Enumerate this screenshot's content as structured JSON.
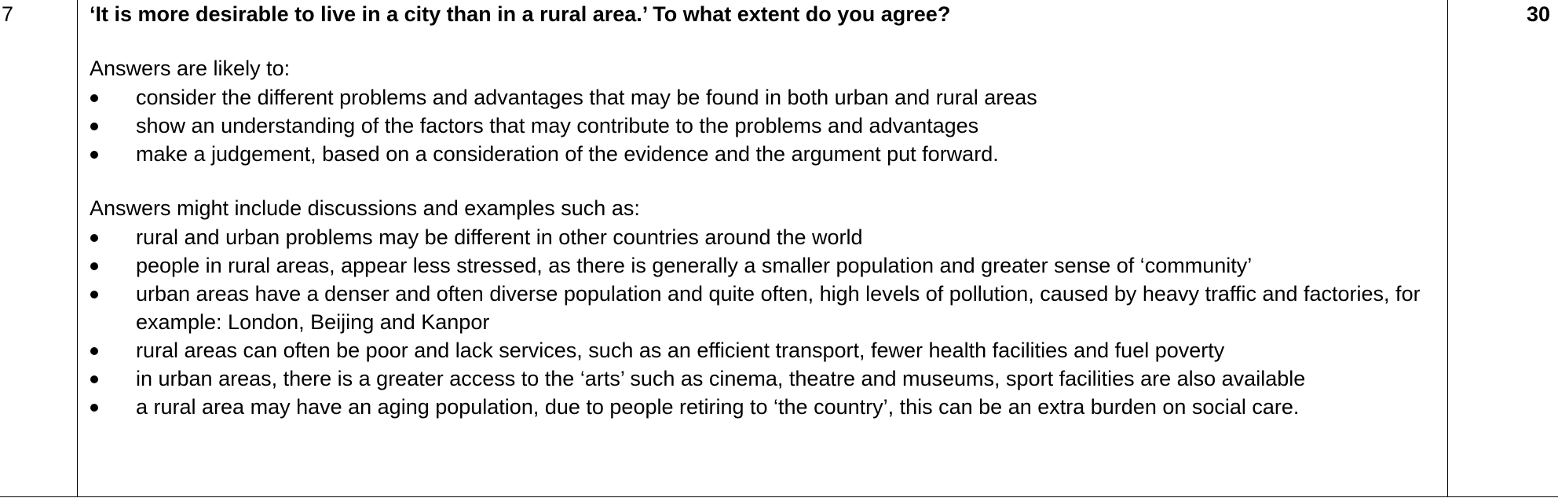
{
  "row": {
    "question_number": "7",
    "marks": "30",
    "question": "‘It is more desirable to live in a city than in a rural area.’ To what extent do you agree?",
    "section1": {
      "intro": "Answers are likely to:",
      "items": [
        "consider the different problems and advantages that may be found in both urban and rural areas",
        "show an understanding of the factors that may contribute to the problems and advantages",
        "make a judgement, based on a consideration of the evidence and the argument put forward."
      ]
    },
    "section2": {
      "intro": "Answers might include discussions and examples such as:",
      "items": [
        "rural and urban problems may be different in other countries around the world",
        "people in rural areas, appear less stressed, as there is generally a smaller population and greater sense of ‘community’",
        "urban areas have a denser and often diverse population and quite often, high levels of pollution, caused by heavy traffic and factories, for example: London, Beijing and Kanpor",
        "rural areas can often be poor and lack services, such as an efficient transport, fewer health facilities and fuel poverty",
        "in urban areas, there is a greater access to the ‘arts’ such as cinema, theatre and museums, sport facilities are also available",
        "a rural area may have an aging population, due to people retiring to ‘the country’, this can be an extra burden on social care."
      ]
    }
  }
}
